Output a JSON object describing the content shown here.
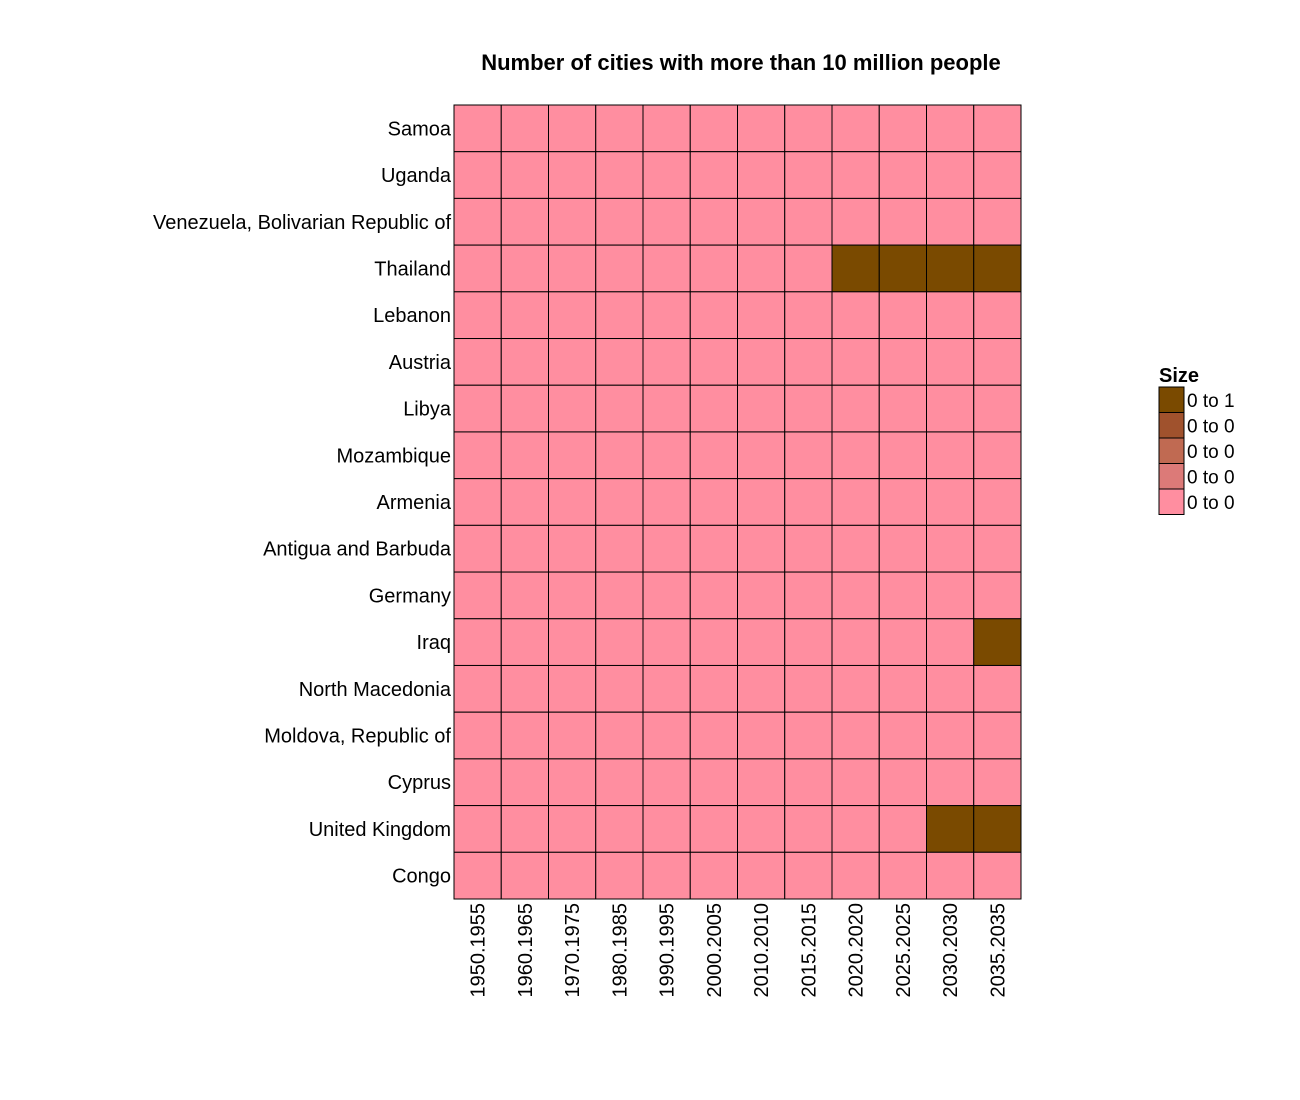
{
  "chart_data": {
    "type": "heatmap",
    "title": "Number of cities with more than 10 million people",
    "xlabel": "",
    "ylabel": "",
    "columns": [
      "1950.1955",
      "1960.1965",
      "1970.1975",
      "1980.1985",
      "1990.1995",
      "2000.2005",
      "2010.2010",
      "2015.2015",
      "2020.2020",
      "2025.2025",
      "2030.2030",
      "2035.2035"
    ],
    "rows": [
      "Samoa",
      "Uganda",
      "Venezuela, Bolivarian Republic of",
      "Thailand",
      "Lebanon",
      "Austria",
      "Libya",
      "Mozambique",
      "Armenia",
      "Antigua and Barbuda",
      "Germany",
      "Iraq",
      "North Macedonia",
      "Moldova, Republic of",
      "Cyprus",
      "United Kingdom",
      "Congo"
    ],
    "values": [
      [
        0,
        0,
        0,
        0,
        0,
        0,
        0,
        0,
        0,
        0,
        0,
        0
      ],
      [
        0,
        0,
        0,
        0,
        0,
        0,
        0,
        0,
        0,
        0,
        0,
        0
      ],
      [
        0,
        0,
        0,
        0,
        0,
        0,
        0,
        0,
        0,
        0,
        0,
        0
      ],
      [
        0,
        0,
        0,
        0,
        0,
        0,
        0,
        0,
        1,
        1,
        1,
        1
      ],
      [
        0,
        0,
        0,
        0,
        0,
        0,
        0,
        0,
        0,
        0,
        0,
        0
      ],
      [
        0,
        0,
        0,
        0,
        0,
        0,
        0,
        0,
        0,
        0,
        0,
        0
      ],
      [
        0,
        0,
        0,
        0,
        0,
        0,
        0,
        0,
        0,
        0,
        0,
        0
      ],
      [
        0,
        0,
        0,
        0,
        0,
        0,
        0,
        0,
        0,
        0,
        0,
        0
      ],
      [
        0,
        0,
        0,
        0,
        0,
        0,
        0,
        0,
        0,
        0,
        0,
        0
      ],
      [
        0,
        0,
        0,
        0,
        0,
        0,
        0,
        0,
        0,
        0,
        0,
        0
      ],
      [
        0,
        0,
        0,
        0,
        0,
        0,
        0,
        0,
        0,
        0,
        0,
        0
      ],
      [
        0,
        0,
        0,
        0,
        0,
        0,
        0,
        0,
        0,
        0,
        0,
        1
      ],
      [
        0,
        0,
        0,
        0,
        0,
        0,
        0,
        0,
        0,
        0,
        0,
        0
      ],
      [
        0,
        0,
        0,
        0,
        0,
        0,
        0,
        0,
        0,
        0,
        0,
        0
      ],
      [
        0,
        0,
        0,
        0,
        0,
        0,
        0,
        0,
        0,
        0,
        0,
        0
      ],
      [
        0,
        0,
        0,
        0,
        0,
        0,
        0,
        0,
        0,
        0,
        1,
        1
      ],
      [
        0,
        0,
        0,
        0,
        0,
        0,
        0,
        0,
        0,
        0,
        0,
        0
      ]
    ],
    "colors": {
      "low": "#ff8ea0",
      "high": "#7a4a00"
    },
    "legend": {
      "title": "Size",
      "placement": "right",
      "entries": [
        {
          "label": "0 to 1",
          "color": "#7a4a00"
        },
        {
          "label": "0 to 0",
          "color": "#a0522d"
        },
        {
          "label": "0 to 0",
          "color": "#c06a52"
        },
        {
          "label": "0 to 0",
          "color": "#dc7a78"
        },
        {
          "label": "0 to 0",
          "color": "#ff8ea0"
        }
      ]
    }
  }
}
